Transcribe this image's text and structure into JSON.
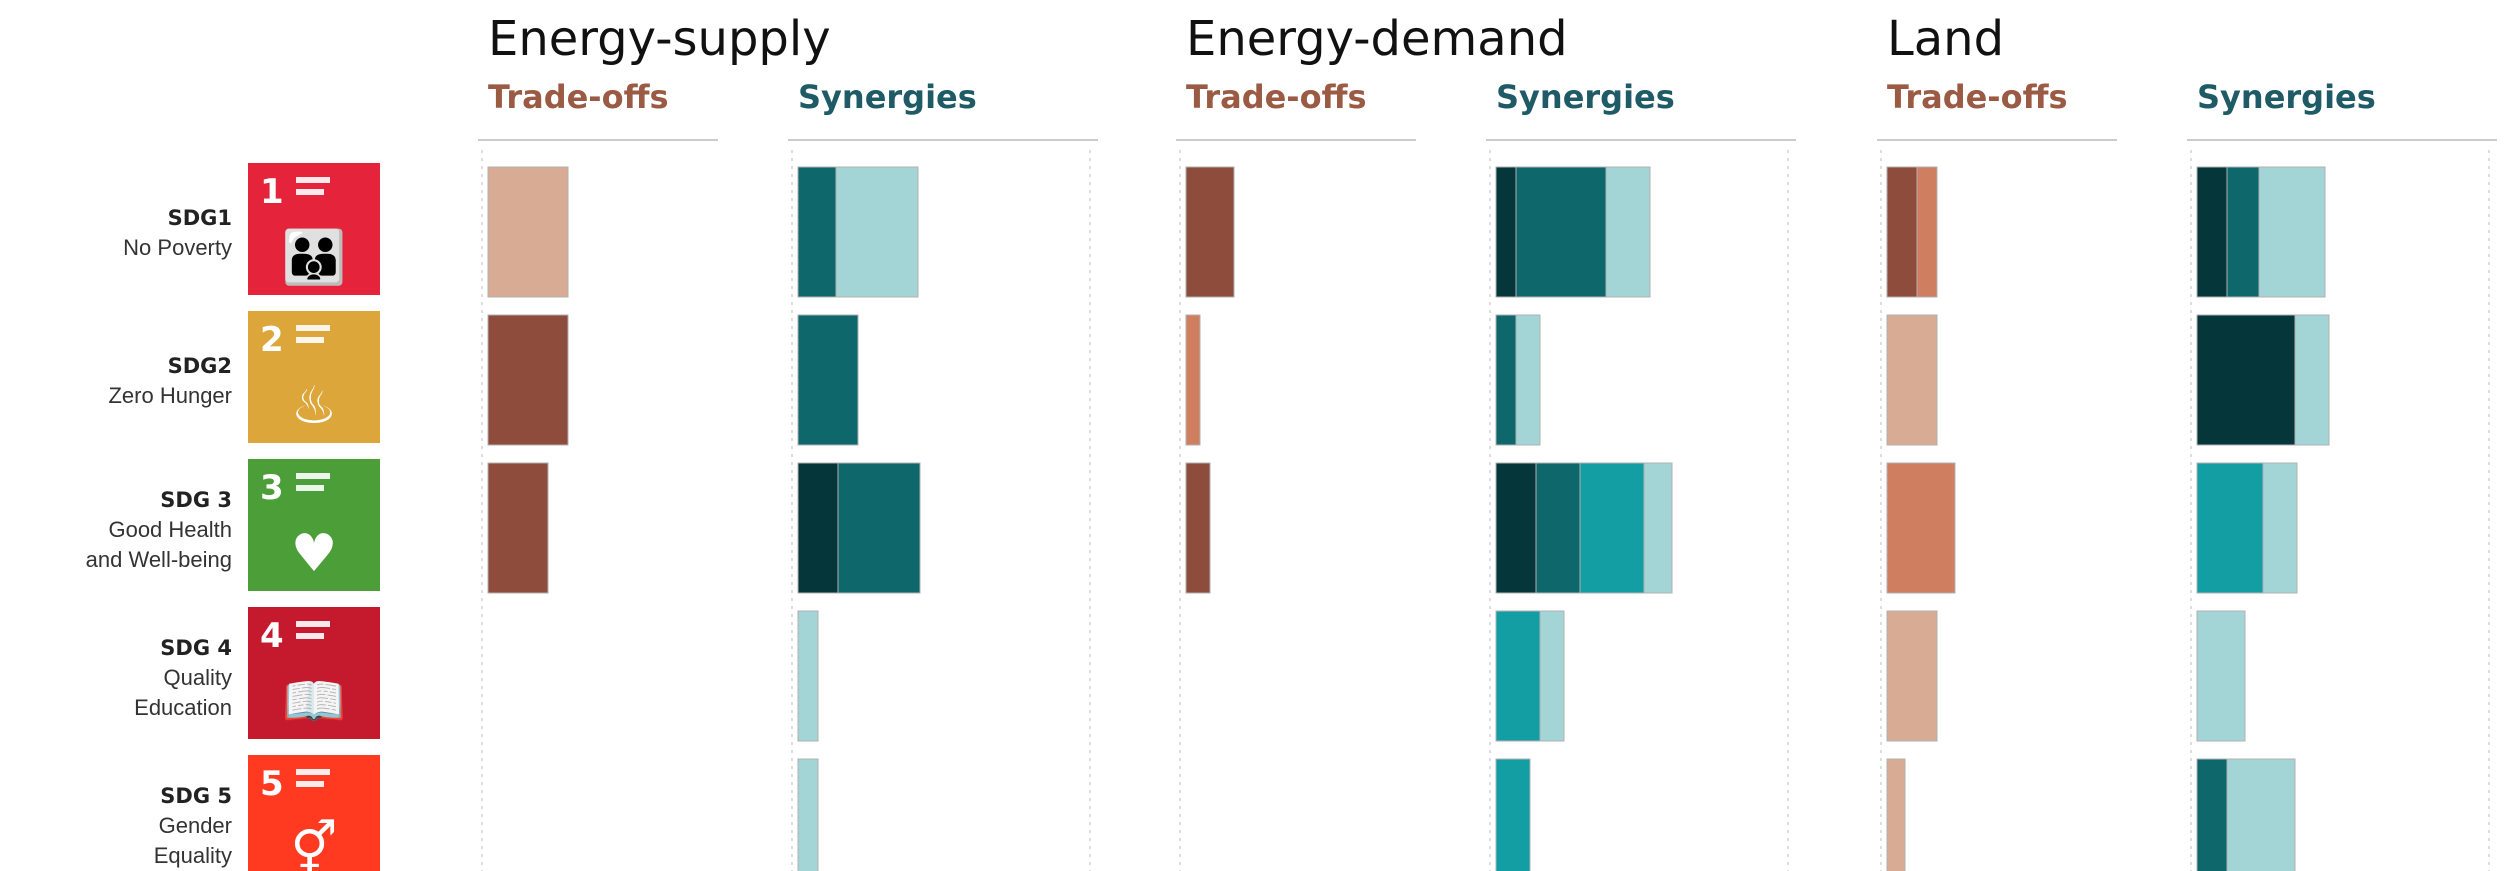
{
  "chart_data": {
    "type": "bar",
    "orientation": "horizontal-stacked",
    "subheads": {
      "tradeoffs": "Trade-offs",
      "synergies": "Synergies"
    },
    "colors": {
      "trade": [
        "#d8ab95",
        "#cf7e60",
        "#8e4c3d"
      ],
      "syn": [
        "#a3d5d6",
        "#139ea3",
        "#0d676b",
        "#05373a"
      ]
    },
    "rows": [
      {
        "code": "SDG1",
        "name": [
          "No Poverty"
        ],
        "badge_number": "1",
        "badge_color": "#e5243b",
        "badge_icon": "people-icon",
        "badge_glyph": "👪"
      },
      {
        "code": "SDG2",
        "name": [
          "Zero Hunger"
        ],
        "badge_number": "2",
        "badge_color": "#dda63a",
        "badge_icon": "bowl-icon",
        "badge_glyph": "♨"
      },
      {
        "code": "SDG 3",
        "name": [
          "Good Health",
          "and Well-being"
        ],
        "badge_number": "3",
        "badge_color": "#4c9f38",
        "badge_icon": "heartbeat-icon",
        "badge_glyph": "♥"
      },
      {
        "code": "SDG 4",
        "name": [
          "Quality",
          "Education"
        ],
        "badge_number": "4",
        "badge_color": "#c5192d",
        "badge_icon": "book-icon",
        "badge_glyph": "📖"
      },
      {
        "code": "SDG 5",
        "name": [
          "Gender",
          "Equality"
        ],
        "badge_number": "5",
        "badge_color": "#ff3a21",
        "badge_icon": "gender-icon",
        "badge_glyph": "⚥"
      }
    ],
    "panels": [
      {
        "title": "Energy-supply",
        "tradeoffs": [
          [
            {
              "value": 80,
              "tone": "light"
            }
          ],
          [
            {
              "value": 80,
              "tone": "dark"
            }
          ],
          [
            {
              "value": 60,
              "tone": "dark"
            }
          ],
          [],
          []
        ],
        "synergies": [
          [
            {
              "value": 38,
              "tone": "mid-dark"
            },
            {
              "value": 82,
              "tone": "light"
            }
          ],
          [
            {
              "value": 60,
              "tone": "mid-dark"
            }
          ],
          [
            {
              "value": 40,
              "tone": "darkest"
            },
            {
              "value": 82,
              "tone": "mid-dark"
            }
          ],
          [
            {
              "value": 20,
              "tone": "light"
            }
          ],
          [
            {
              "value": 20,
              "tone": "light"
            }
          ]
        ]
      },
      {
        "title": "Energy-demand",
        "tradeoffs": [
          [
            {
              "value": 48,
              "tone": "dark"
            }
          ],
          [
            {
              "value": 14,
              "tone": "mid"
            }
          ],
          [
            {
              "value": 24,
              "tone": "dark"
            }
          ],
          [],
          []
        ],
        "synergies": [
          [
            {
              "value": 20,
              "tone": "darkest"
            },
            {
              "value": 90,
              "tone": "mid-dark"
            },
            {
              "value": 44,
              "tone": "light"
            }
          ],
          [
            {
              "value": 20,
              "tone": "mid-dark"
            },
            {
              "value": 24,
              "tone": "light"
            }
          ],
          [
            {
              "value": 40,
              "tone": "darkest"
            },
            {
              "value": 44,
              "tone": "mid-dark"
            },
            {
              "value": 64,
              "tone": "mid"
            },
            {
              "value": 28,
              "tone": "light"
            }
          ],
          [
            {
              "value": 44,
              "tone": "mid"
            },
            {
              "value": 24,
              "tone": "light"
            }
          ],
          [
            {
              "value": 34,
              "tone": "mid"
            }
          ]
        ]
      },
      {
        "title": "Land",
        "tradeoffs": [
          [
            {
              "value": 30,
              "tone": "dark"
            },
            {
              "value": 20,
              "tone": "mid"
            }
          ],
          [
            {
              "value": 50,
              "tone": "light"
            }
          ],
          [
            {
              "value": 68,
              "tone": "mid"
            }
          ],
          [
            {
              "value": 50,
              "tone": "light"
            }
          ],
          [
            {
              "value": 18,
              "tone": "light"
            }
          ]
        ],
        "synergies": [
          [
            {
              "value": 30,
              "tone": "darkest"
            },
            {
              "value": 32,
              "tone": "mid-dark"
            },
            {
              "value": 66,
              "tone": "light"
            }
          ],
          [
            {
              "value": 98,
              "tone": "darkest"
            },
            {
              "value": 34,
              "tone": "light"
            }
          ],
          [
            {
              "value": 66,
              "tone": "mid"
            },
            {
              "value": 34,
              "tone": "light"
            }
          ],
          [
            {
              "value": 48,
              "tone": "light"
            }
          ],
          [
            {
              "value": 30,
              "tone": "mid-dark"
            },
            {
              "value": 68,
              "tone": "light"
            }
          ]
        ]
      }
    ]
  }
}
